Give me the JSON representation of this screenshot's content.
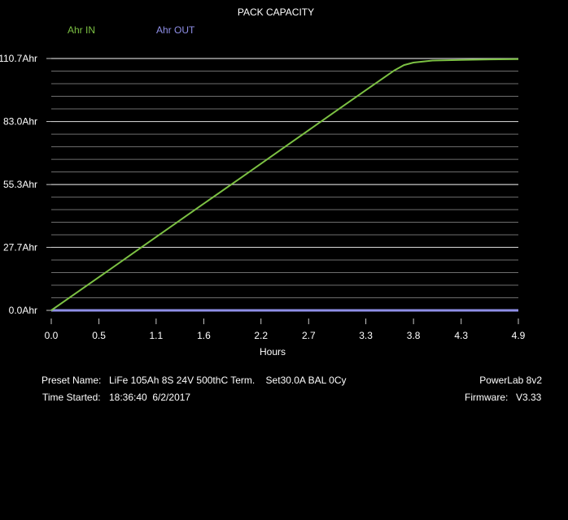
{
  "chart_data": {
    "type": "line",
    "title": "PACK CAPACITY",
    "xlabel": "Hours",
    "ylabel": "",
    "xlim": [
      0,
      4.9
    ],
    "ylim": [
      0,
      110.7
    ],
    "x_ticks": [
      {
        "value": 0,
        "label": "0.0"
      },
      {
        "value": 0.5,
        "label": "0.5"
      },
      {
        "value": 1.1,
        "label": "1.1"
      },
      {
        "value": 1.6,
        "label": "1.6"
      },
      {
        "value": 2.2,
        "label": "2.2"
      },
      {
        "value": 2.7,
        "label": "2.7"
      },
      {
        "value": 3.3,
        "label": "3.3"
      },
      {
        "value": 3.8,
        "label": "3.8"
      },
      {
        "value": 4.3,
        "label": "4.3"
      },
      {
        "value": 4.9,
        "label": "4.9"
      }
    ],
    "y_ticks": [
      {
        "value": 0,
        "label": "0.0Ahr"
      },
      {
        "value": 27.7,
        "label": "27.7Ahr"
      },
      {
        "value": 55.3,
        "label": "55.3Ahr"
      },
      {
        "value": 83.0,
        "label": "83.0Ahr"
      },
      {
        "value": 110.7,
        "label": "110.7Ahr"
      }
    ],
    "minor_gridlines_per_major": 5,
    "grid": true,
    "legend_position": "top-left",
    "series": [
      {
        "name": "Ahr IN",
        "color": "#7cc143",
        "x": [
          0,
          0.5,
          1.0,
          1.5,
          2.0,
          2.5,
          3.0,
          3.3,
          3.5,
          3.6,
          3.7,
          3.8,
          4.0,
          4.3,
          4.6,
          4.9
        ],
        "y": [
          0,
          14.6,
          29.3,
          44.0,
          58.6,
          73.3,
          88.0,
          96.8,
          102.6,
          105.5,
          107.8,
          108.9,
          109.8,
          110.1,
          110.3,
          110.4
        ]
      },
      {
        "name": "Ahr OUT",
        "color": "#8f8fe8",
        "x": [
          0,
          4.9
        ],
        "y": [
          0,
          0
        ]
      }
    ]
  },
  "footer": {
    "preset_label": "Preset Name:",
    "preset_value": "LiFe 105Ah 8S 24V 500thC Term.    Set30.0A BAL 0Cy",
    "time_label": "Time Started:",
    "time_value": "18:36:40  6/2/2017",
    "device": "PowerLab 8v2",
    "firmware_label": "Firmware:",
    "firmware_value": "V3.33"
  },
  "colors": {
    "background": "#000000",
    "major_grid": "#c8c8c8",
    "minor_grid": "#6e6e6e",
    "text": "#ffffff"
  }
}
